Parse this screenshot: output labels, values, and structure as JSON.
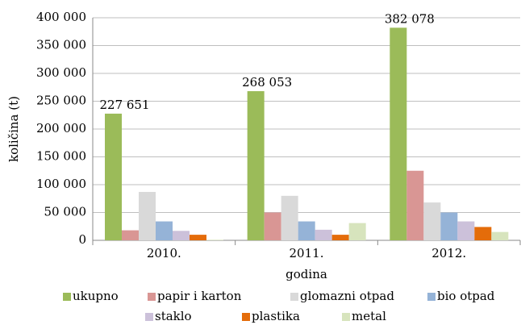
{
  "chart_data": {
    "type": "bar",
    "categories": [
      "2010.",
      "2011.",
      "2012."
    ],
    "x_label": "godina",
    "y_label": "količina (t)",
    "series": [
      {
        "name": "ukupno",
        "color": "#9bbb59",
        "values": [
          227651,
          268053,
          382078
        ],
        "value_labels": [
          "227 651",
          "268 053",
          "382 078"
        ]
      },
      {
        "name": "papir i karton",
        "color": "#d99694",
        "values": [
          18000,
          50000,
          125000
        ]
      },
      {
        "name": "glomazni otpad",
        "color": "#d9d9d9",
        "values": [
          87000,
          80000,
          68000
        ]
      },
      {
        "name": "bio otpad",
        "color": "#95b3d7",
        "values": [
          34000,
          34000,
          50000
        ]
      },
      {
        "name": "staklo",
        "color": "#ccc1da",
        "values": [
          17000,
          19000,
          34000
        ]
      },
      {
        "name": "plastika",
        "color": "#e46c0a",
        "values": [
          10000,
          10000,
          24000
        ]
      },
      {
        "name": "metal",
        "color": "#d7e4bd",
        "values": [
          1000,
          31000,
          15000
        ]
      }
    ],
    "ylim": [
      0,
      400000
    ],
    "yticks": [
      0,
      {
        "value": 50000,
        "label": "50 000"
      },
      {
        "value": 100000,
        "label": "100 000"
      },
      {
        "value": 150000,
        "label": "150 000"
      },
      {
        "value": 200000,
        "label": "200 000"
      },
      {
        "value": 250000,
        "label": "250 000"
      },
      {
        "value": 300000,
        "label": "300 000"
      },
      {
        "value": 350000,
        "label": "350 000"
      },
      {
        "value": 400000,
        "label": "400 000"
      }
    ],
    "grid": true,
    "legend": "bottom"
  }
}
